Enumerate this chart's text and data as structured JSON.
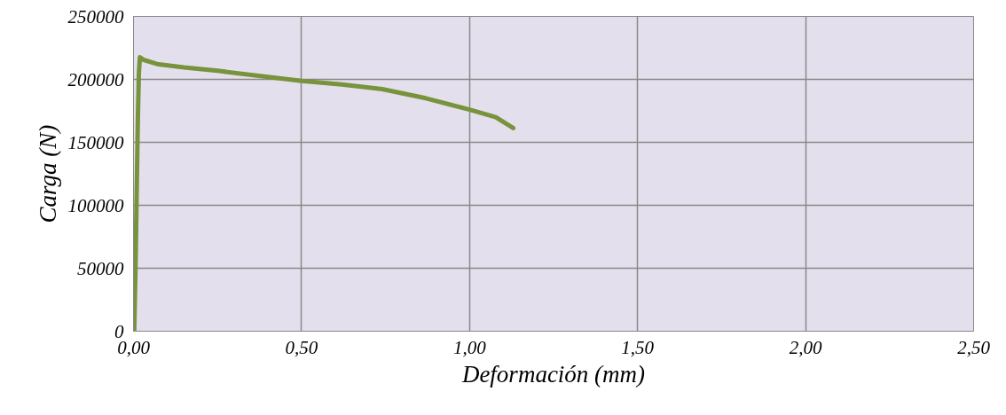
{
  "chart_data": {
    "type": "line",
    "xlabel": "Deformación (mm)",
    "ylabel": "Carga (N)",
    "x": [
      0.002,
      0.006,
      0.01,
      0.013,
      0.016,
      0.019,
      0.03,
      0.07,
      0.15,
      0.25,
      0.4,
      0.5,
      0.62,
      0.74,
      0.87,
      1.0,
      1.078,
      1.13
    ],
    "series": [
      {
        "color": "#77933c",
        "values": [
          0,
          50000,
          120000,
          170000,
          205000,
          217600,
          215500,
          212200,
          209500,
          206800,
          202000,
          198800,
          196000,
          192300,
          185000,
          176000,
          170000,
          161300
        ]
      }
    ],
    "xlim": [
      0,
      2.5
    ],
    "ylim": [
      0,
      250000
    ],
    "xticks": [
      {
        "value": 0,
        "label": "0,00"
      },
      {
        "value": 0.5,
        "label": "0,50"
      },
      {
        "value": 1,
        "label": "1,00"
      },
      {
        "value": 1.5,
        "label": "1,50"
      },
      {
        "value": 2,
        "label": "2,00"
      },
      {
        "value": 2.5,
        "label": "2,50"
      }
    ],
    "yticks": [
      0,
      50000,
      100000,
      150000,
      200000,
      250000
    ],
    "grid": true,
    "marker": "none",
    "line_style": "solid"
  }
}
